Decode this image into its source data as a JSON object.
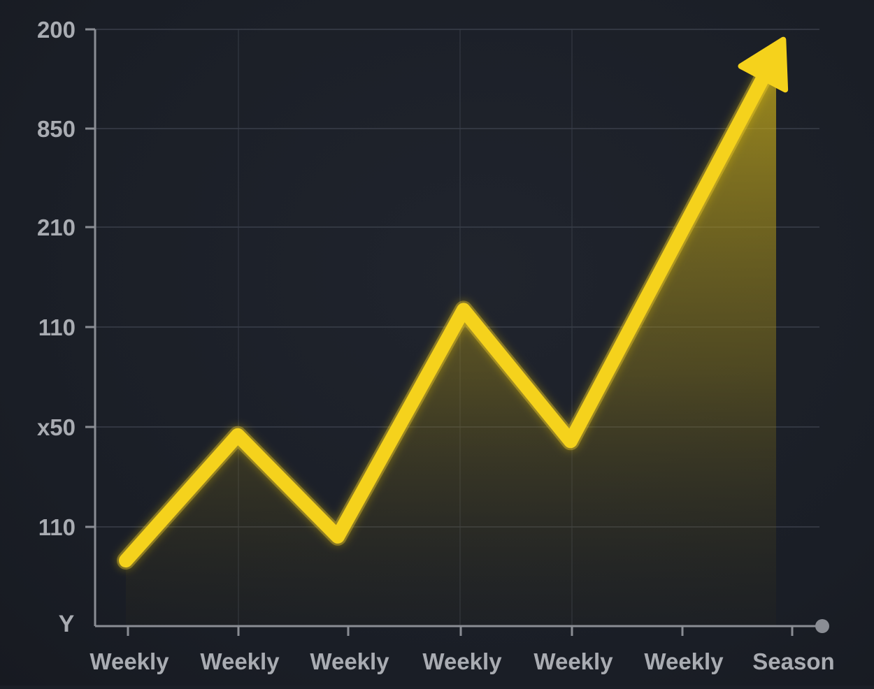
{
  "chart_data": {
    "type": "area",
    "title": "",
    "xlabel": "",
    "ylabel": "Y",
    "y_tick_labels": [
      "200",
      "850",
      "210",
      "110",
      "x50",
      "110"
    ],
    "x_tick_labels": [
      "Weekly",
      "Weekly",
      "Weekly",
      "Weekly",
      "Weekly",
      "Weekly",
      "Season"
    ],
    "series": [
      {
        "values": [
          0.11,
          0.32,
          0.15,
          0.53,
          0.31,
          0.96
        ]
      }
    ],
    "value_scale": "fraction of y-axis height (axis tick labels are non-monotonic)",
    "grid": true,
    "end_arrow": true,
    "colors": {
      "background": "#1b1f27",
      "line": "#f5d21c",
      "fill": "#d9bb1a",
      "grid": "#3a3f4a",
      "axis": "#8a8d94",
      "tick_label": "#a9acb2"
    }
  }
}
